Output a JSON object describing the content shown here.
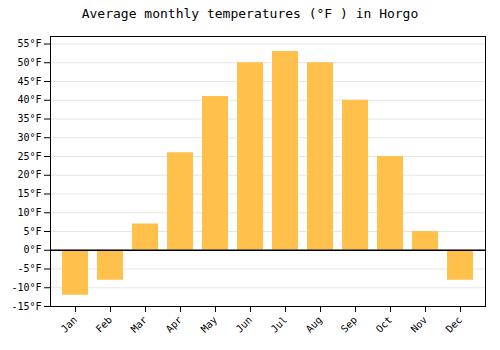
{
  "chart_data": {
    "type": "bar",
    "title": "Average monthly temperatures (°F ) in Horgo",
    "categories": [
      "Jan",
      "Feb",
      "Mar",
      "Apr",
      "May",
      "Jun",
      "Jul",
      "Aug",
      "Sep",
      "Oct",
      "Nov",
      "Dec"
    ],
    "values": [
      -12,
      -8,
      7,
      26,
      41,
      50,
      53,
      50,
      40,
      25,
      5,
      -8
    ],
    "color": "#FFC04C",
    "ylim": [
      -15,
      57
    ],
    "yticks": [
      {
        "value": -15,
        "label": "-15°F"
      },
      {
        "value": -10,
        "label": "-10°F"
      },
      {
        "value": -5,
        "label": "-5°F"
      },
      {
        "value": 0,
        "label": "0°F"
      },
      {
        "value": 5,
        "label": "5°F"
      },
      {
        "value": 10,
        "label": "10°F"
      },
      {
        "value": 15,
        "label": "15°F"
      },
      {
        "value": 20,
        "label": "20°F"
      },
      {
        "value": 25,
        "label": "25°F"
      },
      {
        "value": 30,
        "label": "30°F"
      },
      {
        "value": 35,
        "label": "35°F"
      },
      {
        "value": 40,
        "label": "40°F"
      },
      {
        "value": 45,
        "label": "45°F"
      },
      {
        "value": 50,
        "label": "50°F"
      },
      {
        "value": 55,
        "label": "55°F"
      }
    ],
    "grid": true
  }
}
